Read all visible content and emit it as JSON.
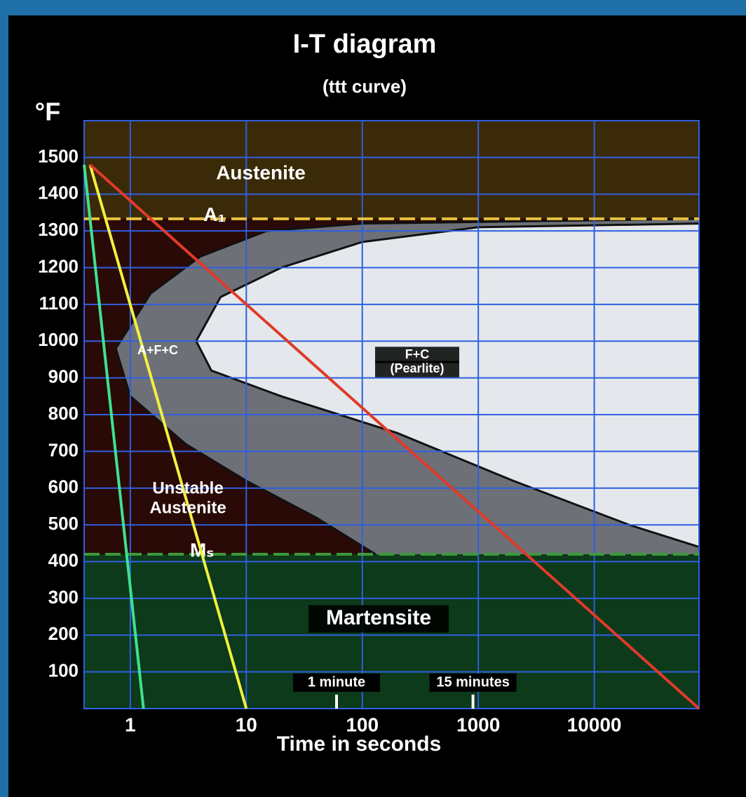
{
  "chart_data": {
    "type": "line",
    "title": "I-T diagram",
    "subtitle": "(ttt curve)",
    "y_axis_label": "°F",
    "x_axis_label": "Time in seconds",
    "x_scale": "log",
    "xlim": [
      0.4,
      80000
    ],
    "xticks": [
      1,
      10,
      100,
      1000,
      10000
    ],
    "ylim": [
      0,
      1600
    ],
    "yticks": [
      100,
      200,
      300,
      400,
      500,
      600,
      700,
      800,
      900,
      1000,
      1100,
      1200,
      1300,
      1400,
      1500
    ],
    "grid": true,
    "grid_color": "#2f5fe0",
    "levels": [
      {
        "label": "A₁",
        "value": 1333,
        "color": "#e8c040"
      },
      {
        "label": "Mₛ",
        "value": 420,
        "color": "#3c9a3c"
      }
    ],
    "regions": [
      {
        "x": [
          80000,
          100,
          15,
          4,
          1.5,
          0.75,
          1,
          3,
          10,
          40,
          130
        ],
        "values": [
          1333,
          1320,
          1300,
          1230,
          1130,
          980,
          850,
          720,
          620,
          520,
          420
        ],
        "color": "#6e7078"
      },
      {
        "x": [
          80000,
          1000,
          100,
          20,
          6,
          3.7,
          5,
          20,
          200,
          2000,
          20000,
          80000
        ],
        "values": [
          1320,
          1310,
          1270,
          1200,
          1120,
          1000,
          920,
          850,
          750,
          620,
          500,
          440
        ],
        "color": "#e4e8ec"
      }
    ],
    "series": [
      {
        "color": "#3fe090",
        "x": [
          0.4,
          1.3
        ],
        "values": [
          1480,
          0
        ]
      },
      {
        "color": "#f0f040",
        "x": [
          0.45,
          10
        ],
        "values": [
          1480,
          0
        ]
      },
      {
        "color": "#e03a2a",
        "x": [
          0.45,
          80000
        ],
        "values": [
          1480,
          0
        ]
      }
    ],
    "time_markers": [
      {
        "value": 60,
        "label": "1 minute"
      },
      {
        "value": 900,
        "label": "15 minutes"
      }
    ],
    "annotations": [
      "Austenite",
      "A+F+C",
      "F+C",
      "(Pearlite)",
      "Unstable",
      "Austenite",
      "Martensite"
    ]
  }
}
